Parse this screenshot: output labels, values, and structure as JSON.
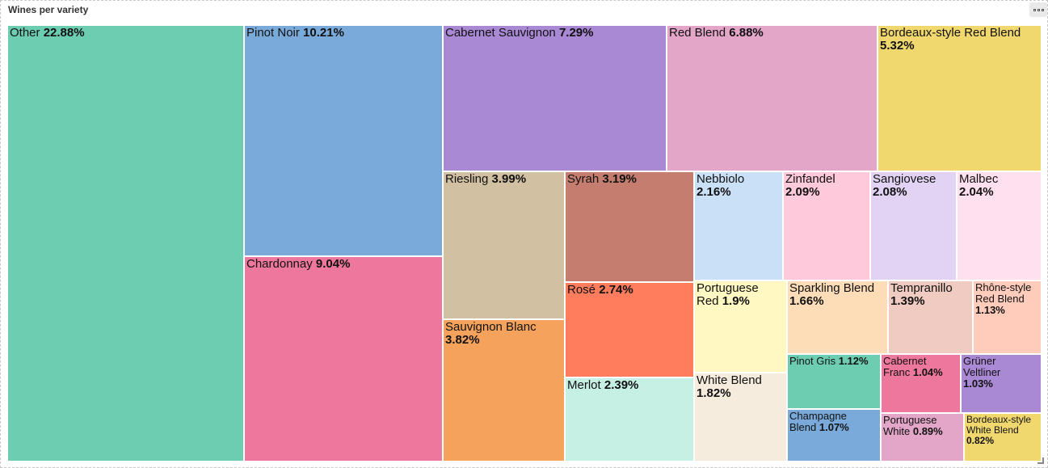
{
  "panel": {
    "title": "Wines per variety",
    "menu_icon": "more-horizontal-icon"
  },
  "chart_data": {
    "type": "treemap",
    "title": "Wines per variety",
    "unit": "%",
    "items": [
      {
        "name": "Other",
        "value": 22.88,
        "color": "#6DCDB1",
        "label": [
          "Other"
        ],
        "pct_inline": true
      },
      {
        "name": "Pinot Noir",
        "value": 10.21,
        "color": "#7AAAD9",
        "label": [
          "Pinot Noir"
        ],
        "pct_inline": true
      },
      {
        "name": "Chardonnay",
        "value": 9.04,
        "color": "#EE789D",
        "label": [
          "Chardonnay"
        ],
        "pct_inline": true
      },
      {
        "name": "Cabernet Sauvignon",
        "value": 7.29,
        "color": "#A988D4",
        "label": [
          "Cabernet Sauvignon"
        ],
        "pct_inline": true
      },
      {
        "name": "Red Blend",
        "value": 6.88,
        "color": "#E3A6C8",
        "label": [
          "Red Blend"
        ],
        "pct_inline": true
      },
      {
        "name": "Bordeaux-style Red Blend",
        "value": 5.32,
        "color": "#F0D86E",
        "label": [
          "Bordeaux-style Red Blend"
        ],
        "pct_inline": false
      },
      {
        "name": "Riesling",
        "value": 3.99,
        "color": "#D1C0A2",
        "label": [
          "Riesling"
        ],
        "pct_inline": true
      },
      {
        "name": "Sauvignon Blanc",
        "value": 3.82,
        "color": "#F5A35C",
        "label": [
          "Sauvignon Blanc"
        ],
        "pct_inline": false
      },
      {
        "name": "Syrah",
        "value": 3.19,
        "color": "#C47D6E",
        "label": [
          "Syrah"
        ],
        "pct_inline": true
      },
      {
        "name": "Rosé",
        "value": 2.74,
        "color": "#FF7C5C",
        "label": [
          "Rosé"
        ],
        "pct_inline": true
      },
      {
        "name": "Merlot",
        "value": 2.39,
        "color": "#C6F0E4",
        "label": [
          "Merlot"
        ],
        "pct_inline": true
      },
      {
        "name": "Nebbiolo",
        "value": 2.16,
        "color": "#C9E0F7",
        "label": [
          "Nebbiolo"
        ],
        "pct_inline": false
      },
      {
        "name": "Zinfandel",
        "value": 2.09,
        "color": "#FEC9DB",
        "label": [
          "Zinfandel"
        ],
        "pct_inline": false
      },
      {
        "name": "Sangiovese",
        "value": 2.08,
        "color": "#E2D3F5",
        "label": [
          "Sangiovese"
        ],
        "pct_inline": false
      },
      {
        "name": "Malbec",
        "value": 2.04,
        "color": "#FFE0EE",
        "label": [
          "Malbec"
        ],
        "pct_inline": false
      },
      {
        "name": "Portuguese Red",
        "value": 1.9,
        "color": "#FFF8C2",
        "label": [
          "Portuguese",
          "Red"
        ],
        "pct_inline": true
      },
      {
        "name": "White Blend",
        "value": 1.82,
        "color": "#F6ECDD",
        "label": [
          "White Blend"
        ],
        "pct_inline": false
      },
      {
        "name": "Sparkling Blend",
        "value": 1.66,
        "color": "#FDDDB8",
        "label": [
          "Sparkling Blend"
        ],
        "pct_inline": false
      },
      {
        "name": "Tempranillo",
        "value": 1.39,
        "color": "#F0CBC2",
        "label": [
          "Tempranillo"
        ],
        "pct_inline": false
      },
      {
        "name": "Rhône-style Red Blend",
        "value": 1.13,
        "color": "#FFCCBC",
        "label": [
          "Rhône-style",
          "Red Blend"
        ],
        "pct_inline": false
      },
      {
        "name": "Pinot Gris",
        "value": 1.12,
        "color": "#6DCDB1",
        "label": [
          "Pinot Gris"
        ],
        "pct_inline": true
      },
      {
        "name": "Cabernet Franc",
        "value": 1.04,
        "color": "#EE789D",
        "label": [
          "Cabernet",
          "Franc"
        ],
        "pct_inline": true
      },
      {
        "name": "Grüner Veltliner",
        "value": 1.03,
        "color": "#A988D4",
        "label": [
          "Grüner",
          "Veltliner"
        ],
        "pct_inline": false
      },
      {
        "name": "Champagne Blend",
        "value": 1.07,
        "color": "#7AAAD9",
        "label": [
          "Champagne",
          "Blend"
        ],
        "pct_inline": true
      },
      {
        "name": "Portuguese White",
        "value": 0.89,
        "color": "#E3A6C8",
        "label": [
          "Portuguese",
          "White"
        ],
        "pct_inline": true
      },
      {
        "name": "Bordeaux-style White Blend",
        "value": 0.82,
        "color": "#F0D86E",
        "label": [
          "Bordeaux-style",
          "White Blend"
        ],
        "pct_inline": false
      }
    ]
  }
}
